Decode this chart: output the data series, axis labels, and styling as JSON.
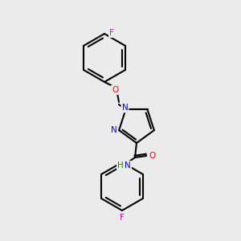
{
  "background_color": "#ebebeb",
  "bond_color": "#000000",
  "atom_colors": {
    "F": "#ff00dd",
    "O": "#ff0000",
    "N": "#0000ff",
    "H": "#2a7a2a",
    "C": "#000000"
  },
  "figure_size": [
    3.0,
    3.0
  ],
  "dpi": 100
}
